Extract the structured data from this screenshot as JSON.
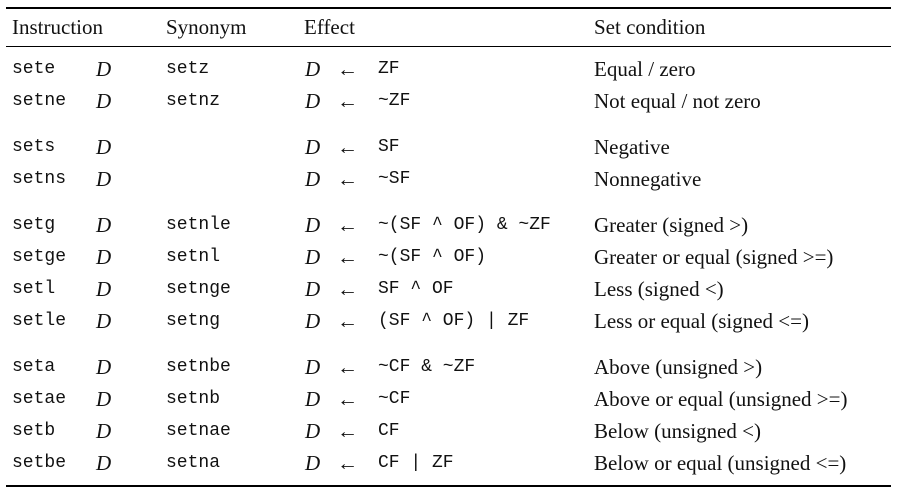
{
  "table": {
    "header": {
      "instruction": "Instruction",
      "synonym": "Synonym",
      "effect": "Effect",
      "condition": "Set condition"
    },
    "groups": [
      {
        "rows": [
          {
            "instruction": "sete",
            "operand": "D",
            "synonym": "setz",
            "effect": {
              "dest": "D",
              "arrow": "←",
              "expr": "ZF"
            },
            "condition": "Equal / zero"
          },
          {
            "instruction": "setne",
            "operand": "D",
            "synonym": "setnz",
            "effect": {
              "dest": "D",
              "arrow": "←",
              "expr": "~ZF"
            },
            "condition": "Not equal / not zero"
          }
        ]
      },
      {
        "rows": [
          {
            "instruction": "sets",
            "operand": "D",
            "effect": {
              "dest": "D",
              "arrow": "←",
              "expr": "SF"
            },
            "condition": "Negative"
          },
          {
            "instruction": "setns",
            "operand": "D",
            "effect": {
              "dest": "D",
              "arrow": "←",
              "expr": "~SF"
            },
            "condition": "Nonnegative"
          }
        ]
      },
      {
        "rows": [
          {
            "instruction": "setg",
            "operand": "D",
            "synonym": "setnle",
            "effect": {
              "dest": "D",
              "arrow": "←",
              "expr": "~(SF ^ OF) & ~ZF"
            },
            "condition": "Greater (signed >)"
          },
          {
            "instruction": "setge",
            "operand": "D",
            "synonym": "setnl",
            "effect": {
              "dest": "D",
              "arrow": "←",
              "expr": "~(SF ^ OF)"
            },
            "condition": "Greater or equal (signed >=)"
          },
          {
            "instruction": "setl",
            "operand": "D",
            "synonym": "setnge",
            "effect": {
              "dest": "D",
              "arrow": "←",
              "expr": "SF ^ OF"
            },
            "condition": "Less (signed <)"
          },
          {
            "instruction": "setle",
            "operand": "D",
            "synonym": "setng",
            "effect": {
              "dest": "D",
              "arrow": "←",
              "expr": "(SF ^ OF) | ZF"
            },
            "condition": "Less or equal (signed <=)"
          }
        ]
      },
      {
        "rows": [
          {
            "instruction": "seta",
            "operand": "D",
            "synonym": "setnbe",
            "effect": {
              "dest": "D",
              "arrow": "←",
              "expr": "~CF & ~ZF"
            },
            "condition": "Above (unsigned >)"
          },
          {
            "instruction": "setae",
            "operand": "D",
            "synonym": "setnb",
            "effect": {
              "dest": "D",
              "arrow": "←",
              "expr": "~CF"
            },
            "condition": "Above or equal (unsigned >=)"
          },
          {
            "instruction": "setb",
            "operand": "D",
            "synonym": "setnae",
            "effect": {
              "dest": "D",
              "arrow": "←",
              "expr": "CF"
            },
            "condition": "Below (unsigned <)"
          },
          {
            "instruction": "setbe",
            "operand": "D",
            "synonym": "setna",
            "effect": {
              "dest": "D",
              "arrow": "←",
              "expr": "CF | ZF"
            },
            "condition": "Below or equal (unsigned <=)"
          }
        ]
      }
    ]
  }
}
